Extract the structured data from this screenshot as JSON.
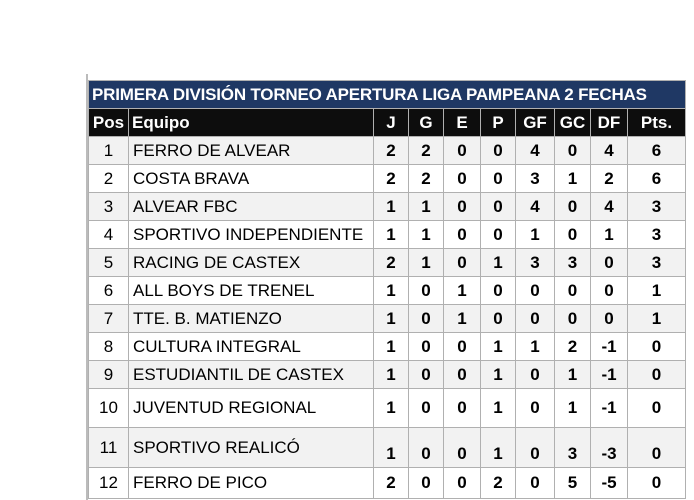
{
  "title": "PRIMERA DIVISIÓN  TORNEO APERTURA LIGA PAMPEANA 2 FECHAS",
  "headers": [
    "Pos",
    "Equipo",
    "J",
    "G",
    "E",
    "P",
    "GF",
    "GC",
    "DF",
    "Pts."
  ],
  "rows": [
    [
      "1",
      "FERRO DE ALVEAR",
      "2",
      "2",
      "0",
      "0",
      "4",
      "0",
      "4",
      "6"
    ],
    [
      "2",
      "COSTA BRAVA",
      "2",
      "2",
      "0",
      "0",
      "3",
      "1",
      "2",
      "6"
    ],
    [
      "3",
      "ALVEAR FBC",
      "1",
      "1",
      "0",
      "0",
      "4",
      "0",
      "4",
      "3"
    ],
    [
      "4",
      "SPORTIVO INDEPENDIENTE",
      "1",
      "1",
      "0",
      "0",
      "1",
      "0",
      "1",
      "3"
    ],
    [
      "5",
      "RACING DE CASTEX",
      "2",
      "1",
      "0",
      "1",
      "3",
      "3",
      "0",
      "3"
    ],
    [
      "6",
      "ALL BOYS DE TRENEL",
      "1",
      "0",
      "1",
      "0",
      "0",
      "0",
      "0",
      "1"
    ],
    [
      "7",
      "TTE. B. MATIENZO",
      "1",
      "0",
      "1",
      "0",
      "0",
      "0",
      "0",
      "1"
    ],
    [
      "8",
      "CULTURA INTEGRAL",
      "1",
      "0",
      "0",
      "1",
      "1",
      "2",
      "-1",
      "0"
    ],
    [
      "9",
      "ESTUDIANTIL DE CASTEX",
      "1",
      "0",
      "0",
      "1",
      "0",
      "1",
      "-1",
      "0"
    ],
    [
      "10",
      "JUVENTUD REGIONAL",
      "1",
      "0",
      "0",
      "1",
      "0",
      "1",
      "-1",
      "0"
    ],
    [
      "11",
      "SPORTIVO REALICÓ",
      "1",
      "0",
      "0",
      "1",
      "0",
      "3",
      "-3",
      "0"
    ],
    [
      "12",
      "FERRO DE PICO",
      "2",
      "0",
      "0",
      "2",
      "0",
      "5",
      "-5",
      "0"
    ]
  ],
  "colors": {
    "title_bg": "#1f3864",
    "header_bg": "#0d0d0d",
    "alt_row": "#f2f2f2"
  }
}
